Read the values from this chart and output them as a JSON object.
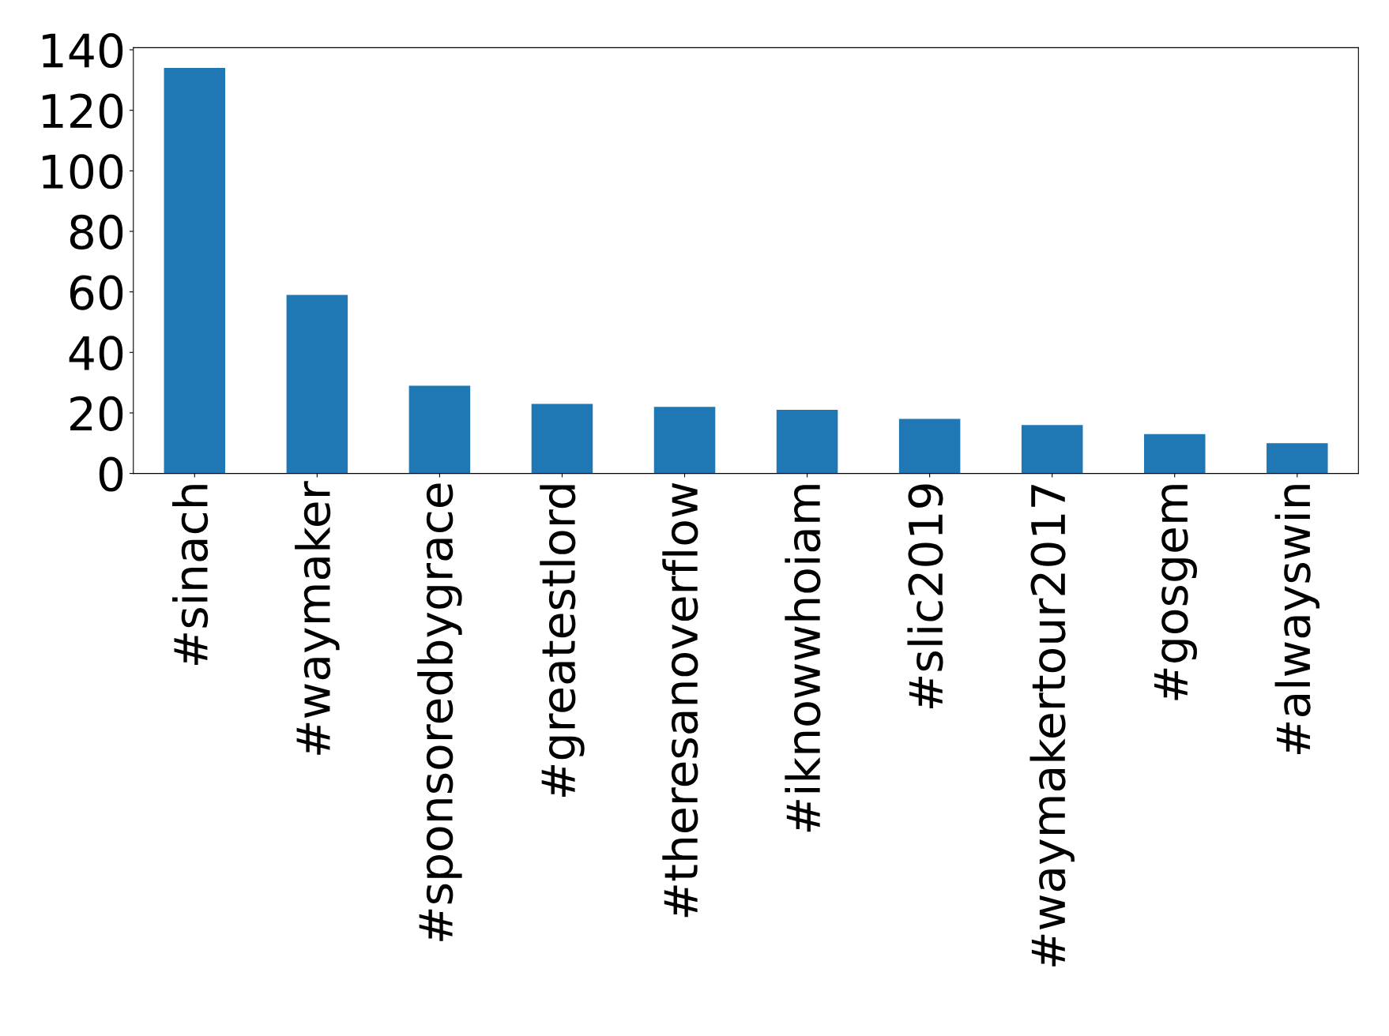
{
  "chart_data": {
    "type": "bar",
    "categories": [
      "#sinach",
      "#waymaker",
      "#sponsoredbygrace",
      "#greatestlord",
      "#theresanoverflow",
      "#iknowwhoiam",
      "#slic2019",
      "#waymakertour2017",
      "#gosgem",
      "#alwayswin"
    ],
    "values": [
      134,
      59,
      29,
      23,
      22,
      21,
      18,
      16,
      13,
      10
    ],
    "color": "#1f77b4",
    "ylim": [
      0,
      140.7
    ],
    "yticks": [
      0,
      20,
      40,
      60,
      80,
      100,
      120,
      140
    ],
    "grid": false,
    "legend": false
  }
}
